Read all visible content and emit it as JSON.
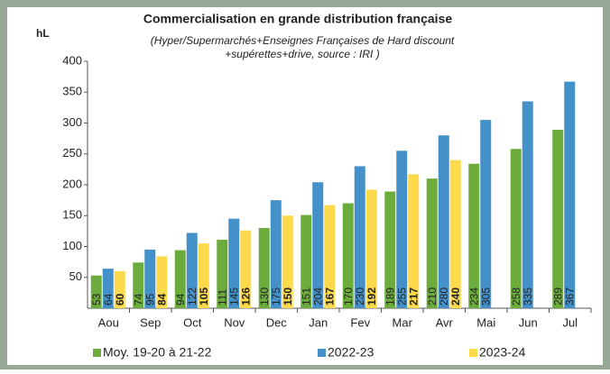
{
  "chart_data": {
    "type": "bar",
    "title": "Commercialisation en grande distribution française",
    "subtitle": [
      "(Hyper/Supermarchés+Enseignes Françaises de Hard discount",
      "+supérettes+drive, source : IRI )"
    ],
    "y_label": "hL",
    "categories": [
      "Aou",
      "Sep",
      "Oct",
      "Nov",
      "Dec",
      "Jan",
      "Fev",
      "Mar",
      "Avr",
      "Mai",
      "Jun",
      "Jul"
    ],
    "series": [
      {
        "name": "Moy. 19-20 à 21-22",
        "color": "#6cac3c",
        "values": [
          53,
          74,
          94,
          111,
          130,
          151,
          170,
          189,
          210,
          234,
          258,
          289
        ]
      },
      {
        "name": "2022-23",
        "color": "#4490c8",
        "values": [
          64,
          95,
          122,
          145,
          175,
          204,
          230,
          255,
          280,
          305,
          335,
          367
        ]
      },
      {
        "name": "2023-24",
        "color": "#fdd94c",
        "values": [
          60,
          84,
          105,
          126,
          150,
          167,
          192,
          217,
          240,
          null,
          null,
          null
        ]
      }
    ],
    "ylim": [
      0,
      400
    ],
    "yticks": [
      50,
      100,
      150,
      200,
      250,
      300,
      350,
      400
    ],
    "grid": false,
    "legend": "bottom"
  }
}
